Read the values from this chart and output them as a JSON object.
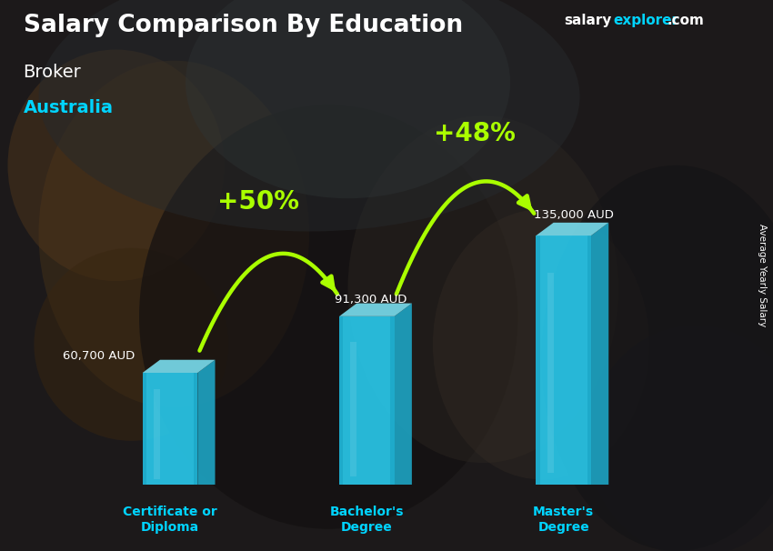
{
  "title1": "Salary Comparison By Education",
  "subtitle1": "Broker",
  "subtitle2": "Australia",
  "ylabel": "Average Yearly Salary",
  "categories": [
    "Certificate or\nDiploma",
    "Bachelor's\nDegree",
    "Master's\nDegree"
  ],
  "values": [
    60700,
    91300,
    135000
  ],
  "value_labels": [
    "60,700 AUD",
    "91,300 AUD",
    "135,000 AUD"
  ],
  "pct_labels": [
    "+50%",
    "+48%"
  ],
  "text_color_white": "#ffffff",
  "text_color_cyan": "#00d4ff",
  "text_color_green": "#aaff00",
  "arrow_color": "#aaff00",
  "bar_front_color": "#29c6e8",
  "bar_left_color": "#1da8c8",
  "bar_top_color": "#7adeef",
  "bar_width": 0.28,
  "x_positions": [
    1.0,
    2.0,
    3.0
  ],
  "ylim": [
    0,
    185000
  ],
  "bg_dark": "#1c1c24",
  "site_salary_color": "#ffffff",
  "site_explorer_color": "#00d4ff"
}
